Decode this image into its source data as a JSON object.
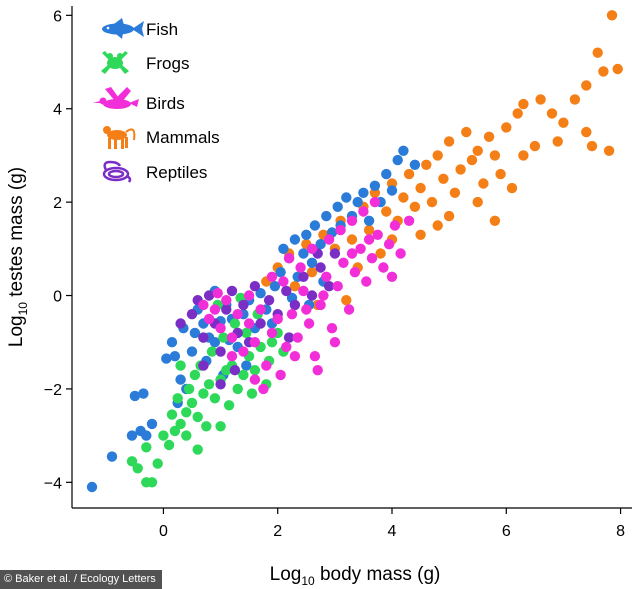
{
  "chart_data": {
    "type": "scatter",
    "xlabel_base": "Log",
    "xlabel_sub": "10",
    "xlabel_rest": " body mass (g)",
    "ylabel_base": "Log",
    "ylabel_sub": "10",
    "ylabel_rest": " testes mass (g)",
    "xlim": [
      -1.6,
      8.2
    ],
    "ylim": [
      -4.55,
      6.2
    ],
    "xticks": [
      0,
      2,
      4,
      6,
      8
    ],
    "yticks": [
      -4,
      -2,
      0,
      2,
      4,
      6
    ],
    "xtick_labels": [
      "0",
      "2",
      "4",
      "6",
      "8"
    ],
    "ytick_labels": [
      "−4",
      "−2",
      "0",
      "2",
      "4",
      "6"
    ],
    "grid": false,
    "legend_position": "top-left",
    "series": [
      {
        "name": "Fish",
        "color": "#2b7bd9",
        "icon": "fish-icon",
        "points": [
          [
            -1.25,
            -4.1
          ],
          [
            -0.9,
            -3.45
          ],
          [
            -0.55,
            -3.0
          ],
          [
            -0.4,
            -2.9
          ],
          [
            -0.3,
            -3.0
          ],
          [
            -0.2,
            -2.75
          ],
          [
            -0.35,
            -2.1
          ],
          [
            0.05,
            -1.35
          ],
          [
            0.2,
            -1.3
          ],
          [
            0.3,
            -1.8
          ],
          [
            0.4,
            -2.0
          ],
          [
            0.5,
            -1.2
          ],
          [
            0.55,
            -0.8
          ],
          [
            0.7,
            -0.6
          ],
          [
            0.8,
            -0.9
          ],
          [
            0.9,
            -1.0
          ],
          [
            1.0,
            -0.55
          ],
          [
            1.1,
            -0.2
          ],
          [
            1.2,
            -0.5
          ],
          [
            1.3,
            -1.1
          ],
          [
            1.4,
            -0.4
          ],
          [
            1.5,
            -0.1
          ],
          [
            1.6,
            -0.7
          ],
          [
            1.7,
            0.05
          ],
          [
            1.8,
            -0.3
          ],
          [
            1.95,
            0.2
          ],
          [
            2.05,
            0.5
          ],
          [
            2.1,
            1.0
          ],
          [
            2.2,
            0.8
          ],
          [
            2.3,
            1.2
          ],
          [
            2.35,
            0.4
          ],
          [
            2.45,
            0.9
          ],
          [
            2.5,
            1.3
          ],
          [
            2.6,
            0.7
          ],
          [
            2.65,
            1.5
          ],
          [
            2.75,
            1.1
          ],
          [
            2.85,
            1.7
          ],
          [
            2.95,
            1.35
          ],
          [
            3.05,
            1.9
          ],
          [
            3.1,
            1.5
          ],
          [
            3.2,
            2.1
          ],
          [
            3.3,
            1.7
          ],
          [
            3.4,
            2.0
          ],
          [
            3.5,
            2.2
          ],
          [
            3.6,
            1.6
          ],
          [
            3.7,
            2.35
          ],
          [
            3.8,
            2.0
          ],
          [
            3.9,
            2.6
          ],
          [
            4.0,
            2.25
          ],
          [
            4.1,
            2.9
          ],
          [
            4.2,
            3.1
          ],
          [
            4.4,
            2.8
          ],
          [
            0.35,
            -0.7
          ],
          [
            0.75,
            -1.4
          ],
          [
            1.15,
            -0.95
          ],
          [
            1.45,
            -1.5
          ],
          [
            1.05,
            -1.7
          ],
          [
            0.6,
            -0.3
          ],
          [
            0.9,
            0.1
          ],
          [
            0.15,
            -1.0
          ],
          [
            2.55,
            -0.2
          ],
          [
            2.8,
            0.3
          ],
          [
            0.25,
            -2.3
          ],
          [
            -0.5,
            -2.15
          ],
          [
            1.9,
            -0.6
          ],
          [
            2.25,
            -0.05
          ]
        ]
      },
      {
        "name": "Frogs",
        "color": "#2ed95a",
        "icon": "frog-icon",
        "points": [
          [
            -0.55,
            -3.55
          ],
          [
            -0.45,
            -3.7
          ],
          [
            -0.3,
            -4.0
          ],
          [
            -0.2,
            -4.0
          ],
          [
            -0.1,
            -3.6
          ],
          [
            -0.3,
            -3.25
          ],
          [
            0.1,
            -3.2
          ],
          [
            0.2,
            -2.9
          ],
          [
            0.3,
            -2.75
          ],
          [
            0.4,
            -2.5
          ],
          [
            0.5,
            -2.3
          ],
          [
            0.6,
            -2.6
          ],
          [
            0.7,
            -2.1
          ],
          [
            0.8,
            -1.9
          ],
          [
            0.9,
            -2.2
          ],
          [
            1.0,
            -1.8
          ],
          [
            1.1,
            -1.6
          ],
          [
            1.2,
            -1.5
          ],
          [
            1.3,
            -2.0
          ],
          [
            1.4,
            -1.7
          ],
          [
            1.5,
            -1.3
          ],
          [
            1.6,
            -1.6
          ],
          [
            1.7,
            -1.1
          ],
          [
            1.8,
            -1.9
          ],
          [
            1.9,
            -1.0
          ],
          [
            2.0,
            -0.8
          ],
          [
            2.1,
            -1.2
          ],
          [
            2.2,
            -0.9
          ],
          [
            0.45,
            -2.0
          ],
          [
            0.65,
            -1.5
          ],
          [
            0.85,
            -1.2
          ],
          [
            1.05,
            -0.9
          ],
          [
            1.25,
            -0.6
          ],
          [
            1.45,
            -0.8
          ],
          [
            1.65,
            -0.4
          ],
          [
            0.25,
            -2.2
          ],
          [
            0.55,
            -1.7
          ],
          [
            0.75,
            -2.8
          ],
          [
            1.0,
            -2.8
          ],
          [
            1.15,
            -2.35
          ],
          [
            0.15,
            -2.55
          ],
          [
            0.0,
            -3.0
          ],
          [
            0.95,
            -0.2
          ],
          [
            1.35,
            -0.05
          ],
          [
            0.3,
            -1.5
          ],
          [
            0.7,
            -0.9
          ],
          [
            1.55,
            -2.1
          ],
          [
            1.85,
            -1.4
          ],
          [
            0.4,
            -3.0
          ],
          [
            0.6,
            -3.3
          ]
        ]
      },
      {
        "name": "Birds",
        "color": "#f22ed9",
        "icon": "bird-icon",
        "points": [
          [
            0.7,
            -0.2
          ],
          [
            0.8,
            -0.5
          ],
          [
            0.9,
            -0.3
          ],
          [
            1.0,
            -0.7
          ],
          [
            1.1,
            -0.1
          ],
          [
            1.2,
            -0.9
          ],
          [
            1.3,
            -0.4
          ],
          [
            1.4,
            -1.2
          ],
          [
            1.5,
            -0.6
          ],
          [
            1.6,
            -1.0
          ],
          [
            1.7,
            -0.3
          ],
          [
            1.8,
            -1.5
          ],
          [
            1.9,
            -0.8
          ],
          [
            2.0,
            -0.5
          ],
          [
            2.05,
            -1.7
          ],
          [
            2.15,
            -1.1
          ],
          [
            2.25,
            -0.4
          ],
          [
            2.35,
            -0.9
          ],
          [
            2.45,
            0.1
          ],
          [
            2.55,
            -0.6
          ],
          [
            2.65,
            -1.3
          ],
          [
            2.75,
            -0.2
          ],
          [
            2.85,
            0.4
          ],
          [
            2.95,
            -0.7
          ],
          [
            3.05,
            0.2
          ],
          [
            3.15,
            0.7
          ],
          [
            3.25,
            -0.3
          ],
          [
            3.35,
            0.5
          ],
          [
            3.45,
            1.0
          ],
          [
            3.55,
            0.3
          ],
          [
            3.65,
            0.8
          ],
          [
            3.75,
            1.3
          ],
          [
            3.85,
            0.6
          ],
          [
            3.95,
            1.1
          ],
          [
            4.05,
            1.5
          ],
          [
            4.15,
            0.9
          ],
          [
            4.3,
            1.6
          ],
          [
            2.1,
            0.3
          ],
          [
            2.4,
            0.6
          ],
          [
            2.6,
            1.0
          ],
          [
            2.9,
            1.2
          ],
          [
            3.1,
            1.4
          ],
          [
            3.3,
            1.6
          ],
          [
            3.5,
            1.8
          ],
          [
            3.7,
            2.0
          ],
          [
            1.5,
            0.0
          ],
          [
            1.9,
            0.4
          ],
          [
            2.2,
            0.8
          ],
          [
            2.7,
            -1.6
          ],
          [
            1.6,
            -1.8
          ],
          [
            1.2,
            -1.3
          ],
          [
            3.0,
            -1.0
          ],
          [
            2.8,
            0.0
          ],
          [
            3.3,
            0.9
          ],
          [
            1.75,
            -2.0
          ],
          [
            2.5,
            -0.3
          ],
          [
            3.6,
            1.2
          ],
          [
            4.0,
            0.4
          ],
          [
            2.3,
            -1.3
          ],
          [
            0.95,
            0.05
          ]
        ]
      },
      {
        "name": "Mammals",
        "color": "#f57f17",
        "icon": "monkey-icon",
        "points": [
          [
            1.8,
            0.3
          ],
          [
            2.0,
            0.6
          ],
          [
            2.2,
            0.9
          ],
          [
            2.3,
            0.2
          ],
          [
            2.5,
            1.1
          ],
          [
            2.6,
            0.5
          ],
          [
            2.8,
            1.3
          ],
          [
            3.0,
            1.0
          ],
          [
            3.1,
            1.6
          ],
          [
            3.3,
            1.2
          ],
          [
            3.5,
            1.9
          ],
          [
            3.6,
            1.4
          ],
          [
            3.7,
            2.2
          ],
          [
            3.9,
            1.8
          ],
          [
            4.0,
            2.4
          ],
          [
            4.1,
            1.6
          ],
          [
            4.2,
            2.1
          ],
          [
            4.3,
            2.6
          ],
          [
            4.4,
            1.9
          ],
          [
            4.5,
            2.3
          ],
          [
            4.6,
            2.8
          ],
          [
            4.7,
            2.0
          ],
          [
            4.8,
            3.0
          ],
          [
            4.9,
            2.5
          ],
          [
            5.0,
            3.3
          ],
          [
            5.1,
            2.2
          ],
          [
            5.2,
            2.7
          ],
          [
            5.3,
            3.5
          ],
          [
            5.4,
            2.9
          ],
          [
            5.5,
            3.1
          ],
          [
            5.6,
            2.4
          ],
          [
            5.7,
            3.4
          ],
          [
            5.8,
            3.0
          ],
          [
            5.9,
            2.6
          ],
          [
            6.0,
            3.6
          ],
          [
            6.1,
            2.3
          ],
          [
            6.2,
            3.9
          ],
          [
            6.3,
            4.1
          ],
          [
            6.5,
            3.2
          ],
          [
            6.6,
            4.2
          ],
          [
            6.8,
            3.9
          ],
          [
            7.0,
            3.7
          ],
          [
            7.2,
            4.2
          ],
          [
            7.4,
            3.5
          ],
          [
            7.5,
            3.2
          ],
          [
            7.6,
            5.2
          ],
          [
            7.7,
            4.8
          ],
          [
            7.85,
            6.0
          ],
          [
            7.95,
            4.85
          ],
          [
            7.4,
            4.5
          ],
          [
            7.8,
            3.1
          ],
          [
            3.4,
            0.6
          ],
          [
            3.8,
            0.9
          ],
          [
            4.5,
            1.3
          ],
          [
            5.0,
            1.7
          ],
          [
            5.5,
            2.0
          ],
          [
            3.2,
            -0.1
          ],
          [
            2.7,
            -0.2
          ],
          [
            4.0,
            1.2
          ],
          [
            5.8,
            1.6
          ],
          [
            4.8,
            1.5
          ],
          [
            6.3,
            3.0
          ],
          [
            6.9,
            3.3
          ]
        ]
      },
      {
        "name": "Reptiles",
        "color": "#7a2ec6",
        "icon": "snake-icon",
        "points": [
          [
            0.3,
            -0.6
          ],
          [
            0.5,
            -0.4
          ],
          [
            0.6,
            -0.1
          ],
          [
            0.7,
            -0.9
          ],
          [
            0.8,
            0.0
          ],
          [
            0.9,
            -0.6
          ],
          [
            1.0,
            -1.2
          ],
          [
            1.1,
            -0.3
          ],
          [
            1.2,
            0.1
          ],
          [
            1.3,
            -0.8
          ],
          [
            1.4,
            -0.2
          ],
          [
            1.5,
            -1.0
          ],
          [
            1.6,
            0.2
          ],
          [
            1.7,
            -0.6
          ],
          [
            1.85,
            -0.1
          ],
          [
            2.0,
            -0.4
          ],
          [
            2.15,
            0.1
          ],
          [
            2.3,
            -0.2
          ],
          [
            2.45,
            0.4
          ],
          [
            2.6,
            0.0
          ],
          [
            2.75,
            0.6
          ],
          [
            2.9,
            0.2
          ],
          [
            3.0,
            0.9
          ],
          [
            1.0,
            -1.9
          ],
          [
            0.7,
            -1.5
          ],
          [
            1.25,
            -1.6
          ],
          [
            2.2,
            -0.9
          ],
          [
            2.7,
            0.9
          ]
        ]
      }
    ]
  },
  "credit": "© Baker et al. / Ecology Letters"
}
